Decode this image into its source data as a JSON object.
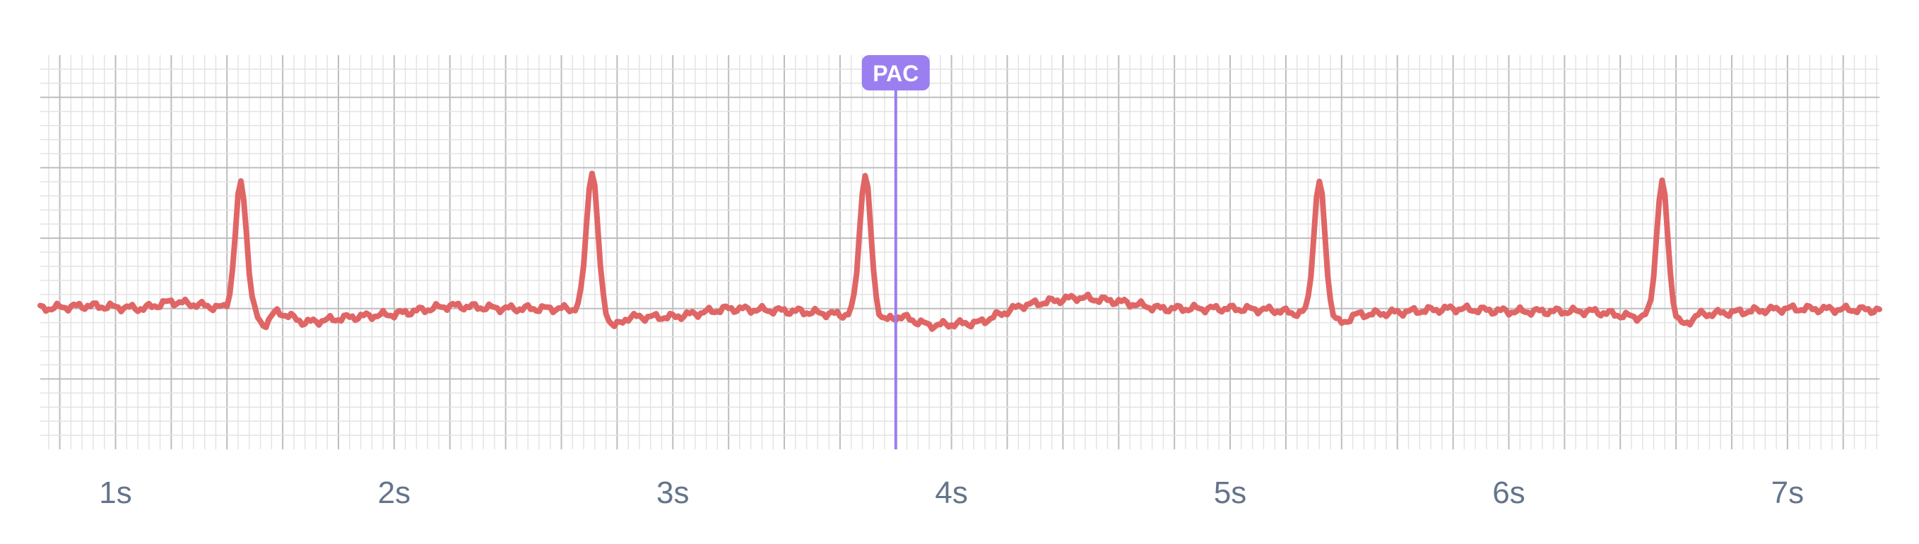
{
  "chart_data": {
    "type": "line",
    "xlabel": "",
    "ylabel": "",
    "xlim": [
      0.73,
      7.33
    ],
    "ylim": [
      -1.0,
      1.8
    ],
    "grid": true,
    "x_tick_unit": "s",
    "x_ticks": [
      {
        "value": 1,
        "label": "1s"
      },
      {
        "value": 2,
        "label": "2s"
      },
      {
        "value": 3,
        "label": "3s"
      },
      {
        "value": 4,
        "label": "4s"
      },
      {
        "value": 5,
        "label": "5s"
      },
      {
        "value": 6,
        "label": "6s"
      },
      {
        "value": 7,
        "label": "7s"
      }
    ],
    "series": [
      {
        "color": "#e06666",
        "sample_interval": 0.01,
        "baseline": [
          [
            0.73,
            0.0
          ],
          [
            0.9,
            0.02
          ],
          [
            1.1,
            0.0
          ],
          [
            1.2,
            0.05
          ],
          [
            1.4,
            0.0
          ],
          [
            1.58,
            -0.02
          ],
          [
            1.68,
            -0.1
          ],
          [
            1.85,
            -0.06
          ],
          [
            2.0,
            -0.04
          ],
          [
            2.2,
            0.02
          ],
          [
            2.4,
            0.0
          ],
          [
            2.6,
            0.0
          ],
          [
            2.75,
            -0.02
          ],
          [
            2.82,
            -0.06
          ],
          [
            3.0,
            -0.06
          ],
          [
            3.2,
            0.0
          ],
          [
            3.45,
            -0.02
          ],
          [
            3.65,
            -0.05
          ],
          [
            3.78,
            -0.03
          ],
          [
            3.92,
            -0.12
          ],
          [
            4.1,
            -0.1
          ],
          [
            4.25,
            0.02
          ],
          [
            4.45,
            0.08
          ],
          [
            4.6,
            0.05
          ],
          [
            4.75,
            0.0
          ],
          [
            5.0,
            0.0
          ],
          [
            5.15,
            -0.01
          ],
          [
            5.3,
            -0.05
          ],
          [
            5.5,
            -0.04
          ],
          [
            5.8,
            0.0
          ],
          [
            6.0,
            -0.02
          ],
          [
            6.3,
            -0.02
          ],
          [
            6.45,
            -0.06
          ],
          [
            6.7,
            -0.04
          ],
          [
            7.0,
            0.0
          ],
          [
            7.33,
            -0.01
          ]
        ],
        "beats": [
          {
            "t": 1.45,
            "amp": 0.9,
            "dip": -0.1
          },
          {
            "t": 2.71,
            "amp": 1.0,
            "dip": -0.08
          },
          {
            "t": 3.69,
            "amp": 1.0,
            "dip": -0.05
          },
          {
            "t": 5.32,
            "amp": 0.95,
            "dip": -0.06
          },
          {
            "t": 6.55,
            "amp": 0.95,
            "dip": -0.07
          }
        ]
      }
    ],
    "annotations": [
      {
        "x": 3.8,
        "label": "PAC",
        "color": "#9b7ef0"
      }
    ]
  }
}
